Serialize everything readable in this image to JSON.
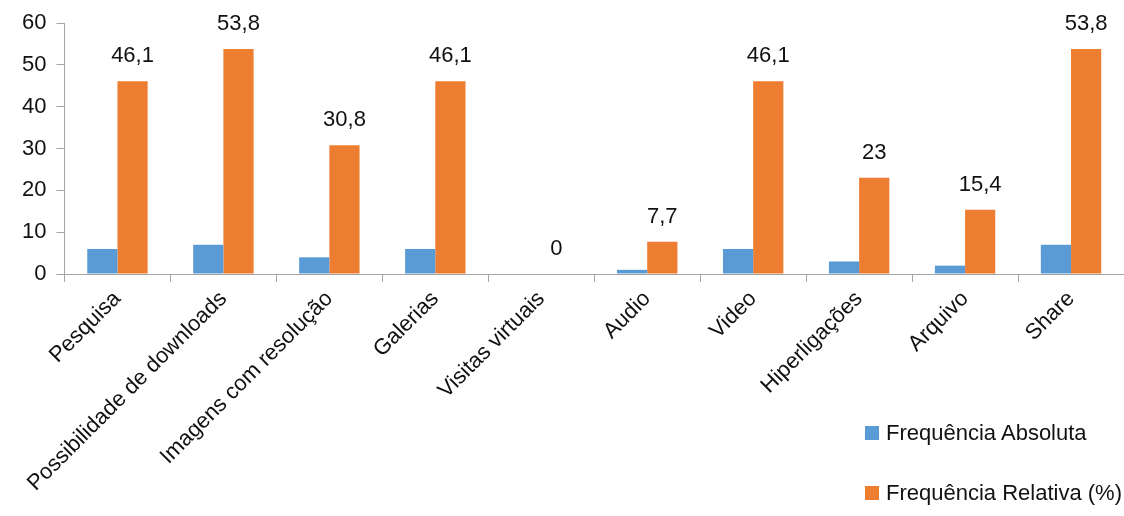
{
  "chart_data": {
    "type": "bar",
    "categories": [
      "Pesquisa",
      "Possibilidade de downloads",
      "Imagens com resolução",
      "Galerias",
      "Visitas virtuais",
      "Audio",
      "Video",
      "Hiperligações",
      "Arquivo",
      "Share"
    ],
    "series": [
      {
        "name": "Frequência Absoluta",
        "color": "#5b9bd5",
        "values": [
          6,
          7,
          4,
          6,
          0,
          1,
          6,
          3,
          2,
          7
        ]
      },
      {
        "name": "Frequência Relativa (%)",
        "color": "#ed7d31",
        "values": [
          46.1,
          53.8,
          30.8,
          46.1,
          0,
          7.7,
          46.1,
          23,
          15.4,
          53.8
        ],
        "value_labels": [
          "46,1",
          "53,8",
          "30,8",
          "46,1",
          "0",
          "7,7",
          "46,1",
          "23",
          "15,4",
          "53,8"
        ]
      }
    ],
    "ylim": [
      0,
      60
    ],
    "yticks": [
      0,
      10,
      20,
      30,
      40,
      50,
      60
    ],
    "grid": false,
    "legend": "bottom right"
  }
}
